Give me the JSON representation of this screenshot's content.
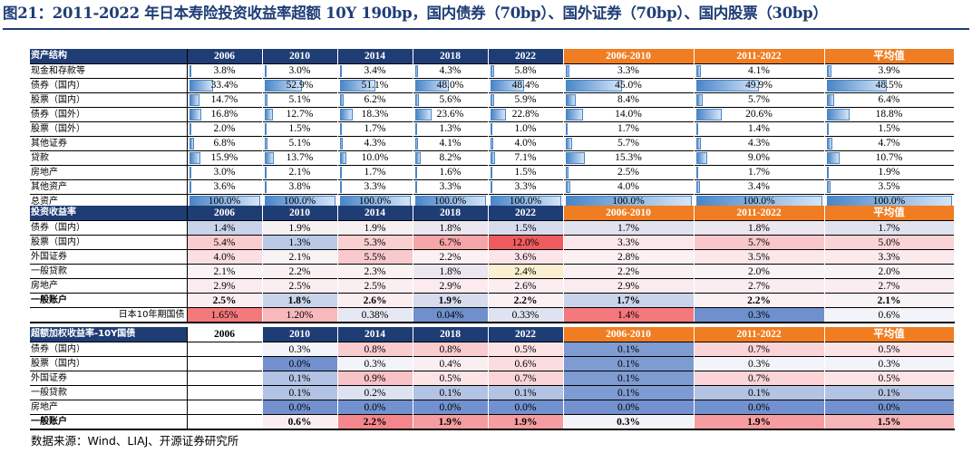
{
  "title": "图21：2011-2022 年日本寿险投资收益率超额 10Y 190bp，国内债券（70bp）、国外证券（70bp）、国内股票（30bp）",
  "source": "数据来源：Wind、LIAJ、开源证券研究所",
  "columns": [
    "2006",
    "2010",
    "2014",
    "2018",
    "2022",
    "2006-2010",
    "2011-2022",
    "平均值"
  ],
  "colors": {
    "header": "#1f3d75",
    "orange": "#f07d21",
    "bar": "#4a86c8"
  },
  "table1": {
    "title": "资产结构",
    "rows": [
      {
        "label": "现金和存款等",
        "values": [
          "3.8%",
          "3.0%",
          "3.4%",
          "4.3%",
          "5.8%",
          "3.3%",
          "4.1%",
          "3.9%"
        ],
        "fracs": [
          0.038,
          0.03,
          0.034,
          0.043,
          0.058,
          0.033,
          0.041,
          0.039
        ]
      },
      {
        "label": "债券（国内）",
        "values": [
          "33.4%",
          "52.9%",
          "51.1%",
          "48.0%",
          "48.4%",
          "45.0%",
          "49.9%",
          "48.5%"
        ],
        "fracs": [
          0.334,
          0.529,
          0.511,
          0.48,
          0.484,
          0.45,
          0.499,
          0.485
        ]
      },
      {
        "label": "股票（国内）",
        "values": [
          "14.7%",
          "5.1%",
          "6.2%",
          "5.6%",
          "5.9%",
          "8.4%",
          "5.7%",
          "6.4%"
        ],
        "fracs": [
          0.147,
          0.051,
          0.062,
          0.056,
          0.059,
          0.084,
          0.057,
          0.064
        ]
      },
      {
        "label": "债券（国外）",
        "values": [
          "16.8%",
          "12.7%",
          "18.3%",
          "23.6%",
          "22.8%",
          "14.0%",
          "20.6%",
          "18.8%"
        ],
        "fracs": [
          0.168,
          0.127,
          0.183,
          0.236,
          0.228,
          0.14,
          0.206,
          0.188
        ]
      },
      {
        "label": "股票（国外）",
        "values": [
          "2.0%",
          "1.5%",
          "1.7%",
          "1.3%",
          "1.0%",
          "1.7%",
          "1.4%",
          "1.5%"
        ],
        "fracs": [
          0.02,
          0.015,
          0.017,
          0.013,
          0.01,
          0.017,
          0.014,
          0.015
        ]
      },
      {
        "label": "其他证券",
        "values": [
          "6.8%",
          "5.1%",
          "4.3%",
          "4.1%",
          "4.0%",
          "5.7%",
          "4.3%",
          "4.7%"
        ],
        "fracs": [
          0.068,
          0.051,
          0.043,
          0.041,
          0.04,
          0.057,
          0.043,
          0.047
        ]
      },
      {
        "label": "贷款",
        "values": [
          "15.9%",
          "13.7%",
          "10.0%",
          "8.2%",
          "7.1%",
          "15.3%",
          "9.0%",
          "10.7%"
        ],
        "fracs": [
          0.159,
          0.137,
          0.1,
          0.082,
          0.071,
          0.153,
          0.09,
          0.107
        ]
      },
      {
        "label": "房地产",
        "values": [
          "3.0%",
          "2.1%",
          "1.7%",
          "1.6%",
          "1.5%",
          "2.5%",
          "1.7%",
          "1.9%"
        ],
        "fracs": [
          0.03,
          0.021,
          0.017,
          0.016,
          0.015,
          0.025,
          0.017,
          0.019
        ]
      },
      {
        "label": "其他资产",
        "values": [
          "3.6%",
          "3.8%",
          "3.3%",
          "3.3%",
          "3.3%",
          "4.0%",
          "3.4%",
          "3.5%"
        ],
        "fracs": [
          0.036,
          0.038,
          0.033,
          0.033,
          0.033,
          0.04,
          0.034,
          0.035
        ]
      },
      {
        "label": "总资产",
        "values": [
          "100.0%",
          "100.0%",
          "100.0%",
          "100.0%",
          "100.0%",
          "100.0%",
          "100.0%",
          "100.0%"
        ],
        "fracs": [
          1,
          1,
          1,
          1,
          1,
          1,
          1,
          1
        ]
      }
    ]
  },
  "table2": {
    "title": "投资收益率",
    "rows": [
      {
        "label": "债券（国内）",
        "values": [
          "1.4%",
          "1.9%",
          "1.9%",
          "1.8%",
          "1.5%",
          "1.7%",
          "1.8%",
          "1.7%"
        ],
        "colors": [
          "#c9d4ea",
          "#f6f0f2",
          "#f6f0f2",
          "#ebe6ef",
          "#d6dcee",
          "#e0e2f0",
          "#ebe6ef",
          "#e0e2f0"
        ]
      },
      {
        "label": "股票（国内）",
        "values": [
          "5.4%",
          "1.3%",
          "5.3%",
          "6.7%",
          "12.0%",
          "3.3%",
          "5.7%",
          "5.0%"
        ],
        "colors": [
          "#f9cdd0",
          "#bac9e6",
          "#f9cfd2",
          "#f6a6a9",
          "#ef5c5f",
          "#fbe6e9",
          "#f9c7ca",
          "#f9d3d6"
        ]
      },
      {
        "label": "外国证券",
        "values": [
          "4.0%",
          "2.1%",
          "5.5%",
          "2.2%",
          "3.6%",
          "2.8%",
          "3.5%",
          "3.3%"
        ],
        "colors": [
          "#fbdfe2",
          "#faf3f5",
          "#f9cacd",
          "#fbf1f3",
          "#fbe5e8",
          "#fbf0f2",
          "#fbe7ea",
          "#fbe9ec"
        ]
      },
      {
        "label": "一般贷款",
        "values": [
          "2.1%",
          "2.2%",
          "2.3%",
          "1.8%",
          "2.4%",
          "2.2%",
          "2.0%",
          "2.0%"
        ],
        "colors": [
          "#faf3f5",
          "#fbf1f3",
          "#fbf0f2",
          "#ebe6ef",
          "#fbefd1",
          "#fbf1f3",
          "#faf3f5",
          "#faf3f5"
        ]
      },
      {
        "label": "房地产",
        "values": [
          "2.9%",
          "2.5%",
          "2.5%",
          "2.9%",
          "2.6%",
          "2.9%",
          "2.7%",
          "2.7%"
        ],
        "colors": [
          "#fbebee",
          "#fbeef0",
          "#fbeef0",
          "#fbebee",
          "#fbedf0",
          "#fbebee",
          "#fbedef",
          "#fbedef"
        ]
      },
      {
        "label": "一般账户",
        "values": [
          "2.5%",
          "1.8%",
          "2.6%",
          "1.9%",
          "2.2%",
          "1.7%",
          "2.2%",
          "2.1%"
        ],
        "colors": [
          "#fbeef0",
          "#c9d4ea",
          "#fbedf0",
          "#d6dcee",
          "#fbf1f3",
          "#c9d4ea",
          "#fbf1f3",
          "#faf3f5"
        ],
        "bold": true
      },
      {
        "label": "日本10年期国债",
        "values": [
          "1.65%",
          "1.20%",
          "0.38%",
          "0.04%",
          "0.33%",
          "1.4%",
          "0.3%",
          "0.6%"
        ],
        "colors": [
          "#f4797d",
          "#f8b9bc",
          "#e6e8f3",
          "#6f90cc",
          "#dfe3f1",
          "#f4787c",
          "#6f90cc",
          "#f3f4f9"
        ],
        "right_label": true
      }
    ]
  },
  "table3": {
    "title": "超额加权收益率-10Y国债",
    "rows": [
      {
        "label": "债券（国内）",
        "values": [
          "",
          "0.3%",
          "0.8%",
          "0.8%",
          "0.5%",
          "0.1%",
          "0.7%",
          "0.5%"
        ],
        "colors": [
          "#ffffff",
          "#f3f4f9",
          "#f9ccd0",
          "#f9ccd0",
          "#fbe3e6",
          "#7e9cd2",
          "#fad4d7",
          "#fbe3e6"
        ]
      },
      {
        "label": "股票（国内）",
        "values": [
          "",
          "0.0%",
          "0.3%",
          "0.4%",
          "0.6%",
          "0.1%",
          "0.3%",
          "0.3%"
        ],
        "colors": [
          "#ffffff",
          "#7391cf",
          "#f3f4f9",
          "#fbeef0",
          "#fbdde0",
          "#7e9cd2",
          "#f3f4f9",
          "#f3f4f9"
        ]
      },
      {
        "label": "外国证券",
        "values": [
          "",
          "0.1%",
          "0.9%",
          "0.5%",
          "0.7%",
          "0.1%",
          "0.7%",
          "0.5%"
        ],
        "colors": [
          "#ffffff",
          "#b3c3e4",
          "#f8c2c6",
          "#fbe3e6",
          "#fad4d7",
          "#7e9cd2",
          "#fad4d7",
          "#fbe3e6"
        ]
      },
      {
        "label": "一般贷款",
        "values": [
          "",
          "0.1%",
          "0.2%",
          "0.1%",
          "0.1%",
          "0.1%",
          "0.1%",
          "0.1%"
        ],
        "colors": [
          "#ffffff",
          "#b3c3e4",
          "#dde2f1",
          "#b3c3e4",
          "#b3c3e4",
          "#7e9cd2",
          "#b3c3e4",
          "#b3c3e4"
        ]
      },
      {
        "label": "房地产",
        "values": [
          "",
          "0.0%",
          "0.0%",
          "0.0%",
          "0.0%",
          "0.0%",
          "0.0%",
          "0.0%"
        ],
        "colors": [
          "#ffffff",
          "#7391cf",
          "#7391cf",
          "#7391cf",
          "#7391cf",
          "#7391cf",
          "#7391cf",
          "#7391cf"
        ]
      },
      {
        "label": "一般账户",
        "values": [
          "",
          "0.6%",
          "2.2%",
          "1.9%",
          "1.9%",
          "0.3%",
          "1.9%",
          "1.5%"
        ],
        "colors": [
          "#ffffff",
          "#fbeef0",
          "#f4878b",
          "#f59da0",
          "#f59da0",
          "#f3f4f9",
          "#f59da0",
          "#f7b5b8"
        ],
        "bold": true
      }
    ]
  }
}
